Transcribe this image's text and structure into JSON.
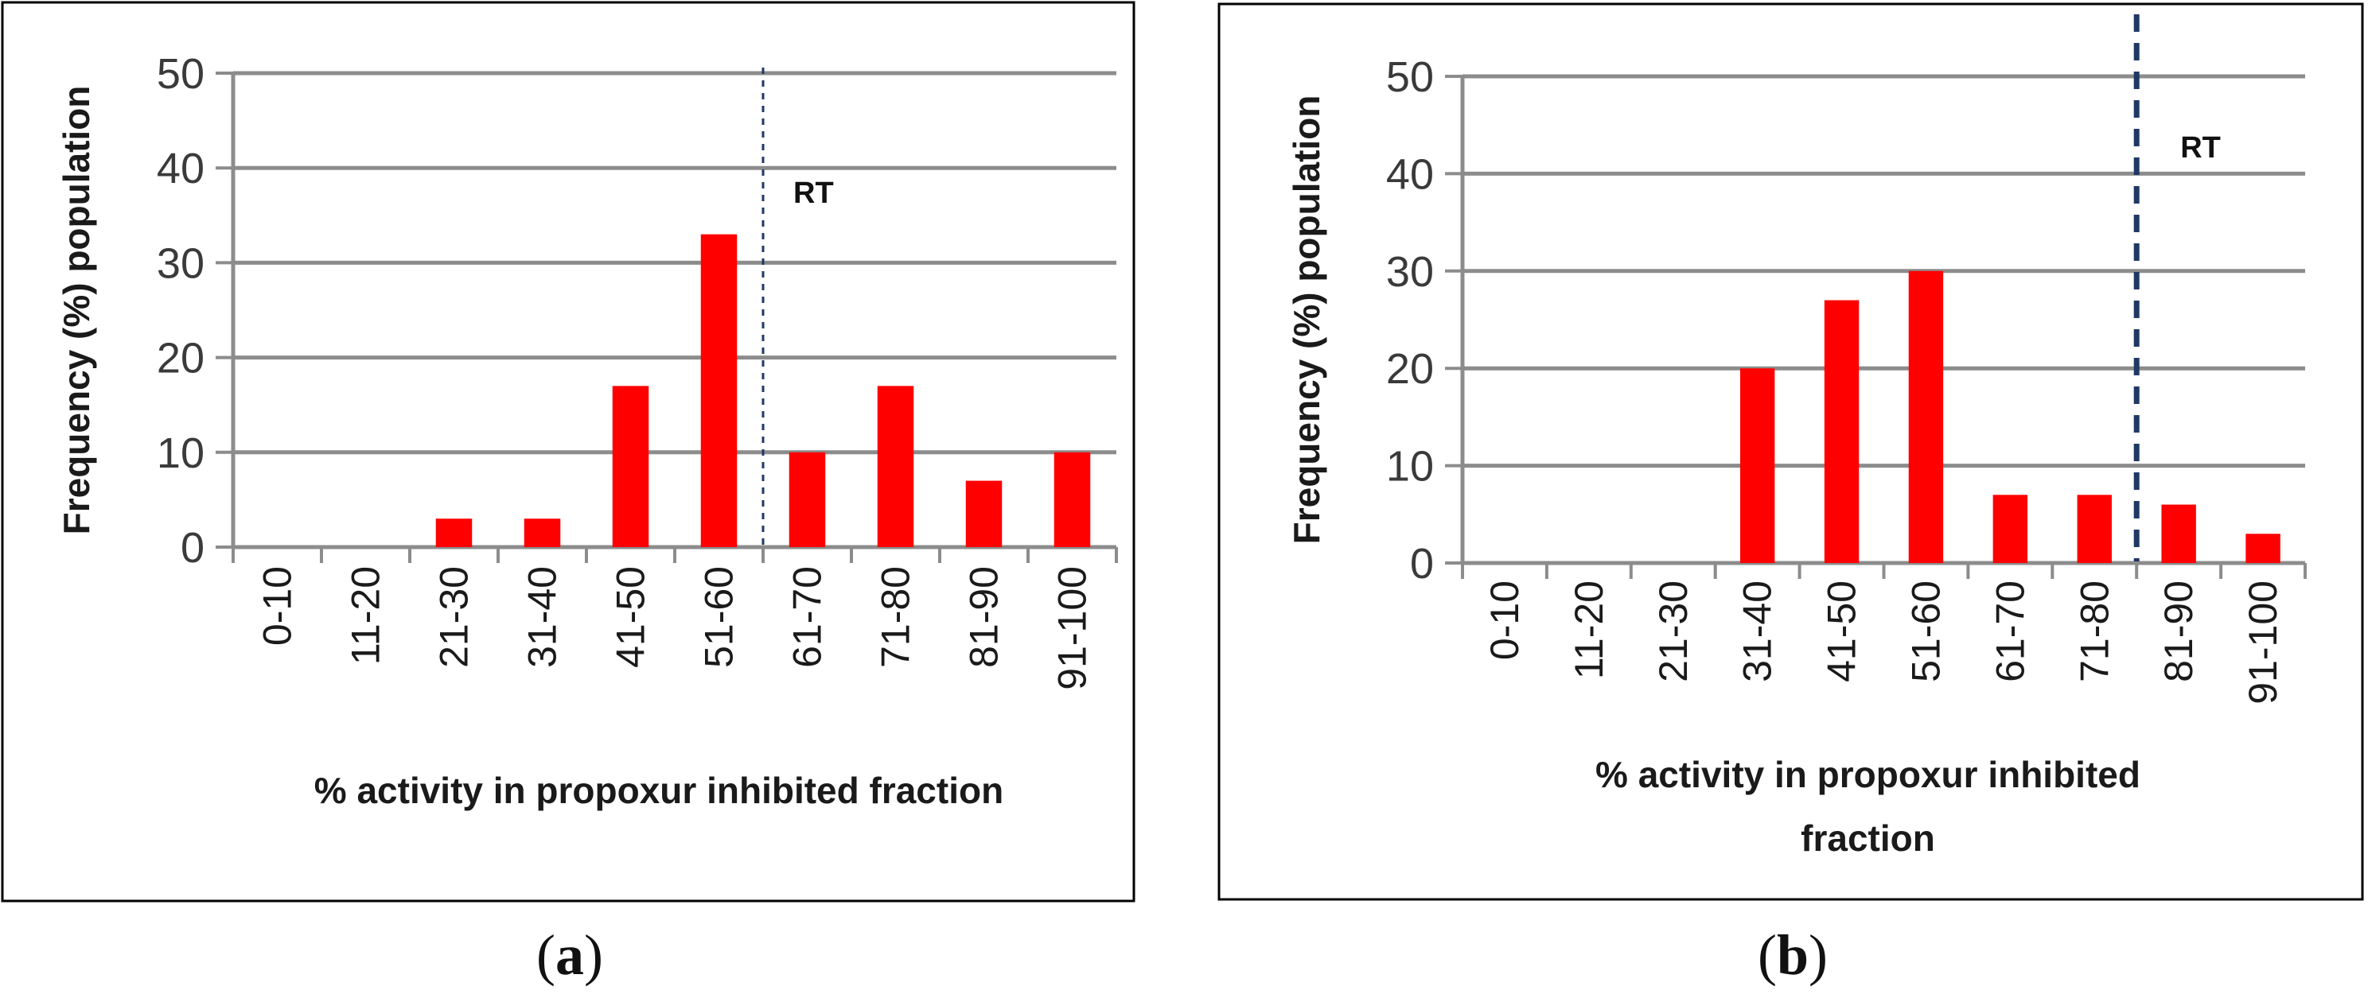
{
  "chart_data": [
    {
      "type": "bar",
      "panel": "a",
      "categories": [
        "0-10",
        "11-20",
        "21-30",
        "31-40",
        "41-50",
        "51-60",
        "61-70",
        "71-80",
        "81-90",
        "91-100"
      ],
      "values": [
        0,
        0,
        3,
        3,
        17,
        33,
        10,
        17,
        7,
        10
      ],
      "ylabel": "Frequency (%) population",
      "xlabel": [
        "% activity in propoxur inhibited fraction"
      ],
      "ylim": [
        0,
        50
      ],
      "yticks": [
        0,
        10,
        20,
        30,
        40,
        50
      ],
      "grid": true,
      "bar_color": "#ff0000",
      "threshold": {
        "label": "RT",
        "after_category": "51-60",
        "style": "thin-dashed",
        "color": "#1f3864"
      },
      "caption": {
        "open": "(",
        "letter": "a",
        "close": ")"
      }
    },
    {
      "type": "bar",
      "panel": "b",
      "categories": [
        "0-10",
        "11-20",
        "21-30",
        "31-40",
        "41-50",
        "51-60",
        "61-70",
        "71-80",
        "81-90",
        "91-100"
      ],
      "values": [
        0,
        0,
        0,
        20,
        27,
        30,
        7,
        7,
        6,
        3
      ],
      "ylabel": "Frequency (%) population",
      "xlabel": [
        "% activity in propoxur inhibited",
        "fraction"
      ],
      "ylim": [
        0,
        50
      ],
      "yticks": [
        0,
        10,
        20,
        30,
        40,
        50
      ],
      "grid": true,
      "bar_color": "#ff0000",
      "threshold": {
        "label": "RT",
        "after_category": "71-80",
        "style": "thick-dashed",
        "color": "#1f3864"
      },
      "caption": {
        "open": "(",
        "letter": "b",
        "close": ")"
      }
    }
  ]
}
